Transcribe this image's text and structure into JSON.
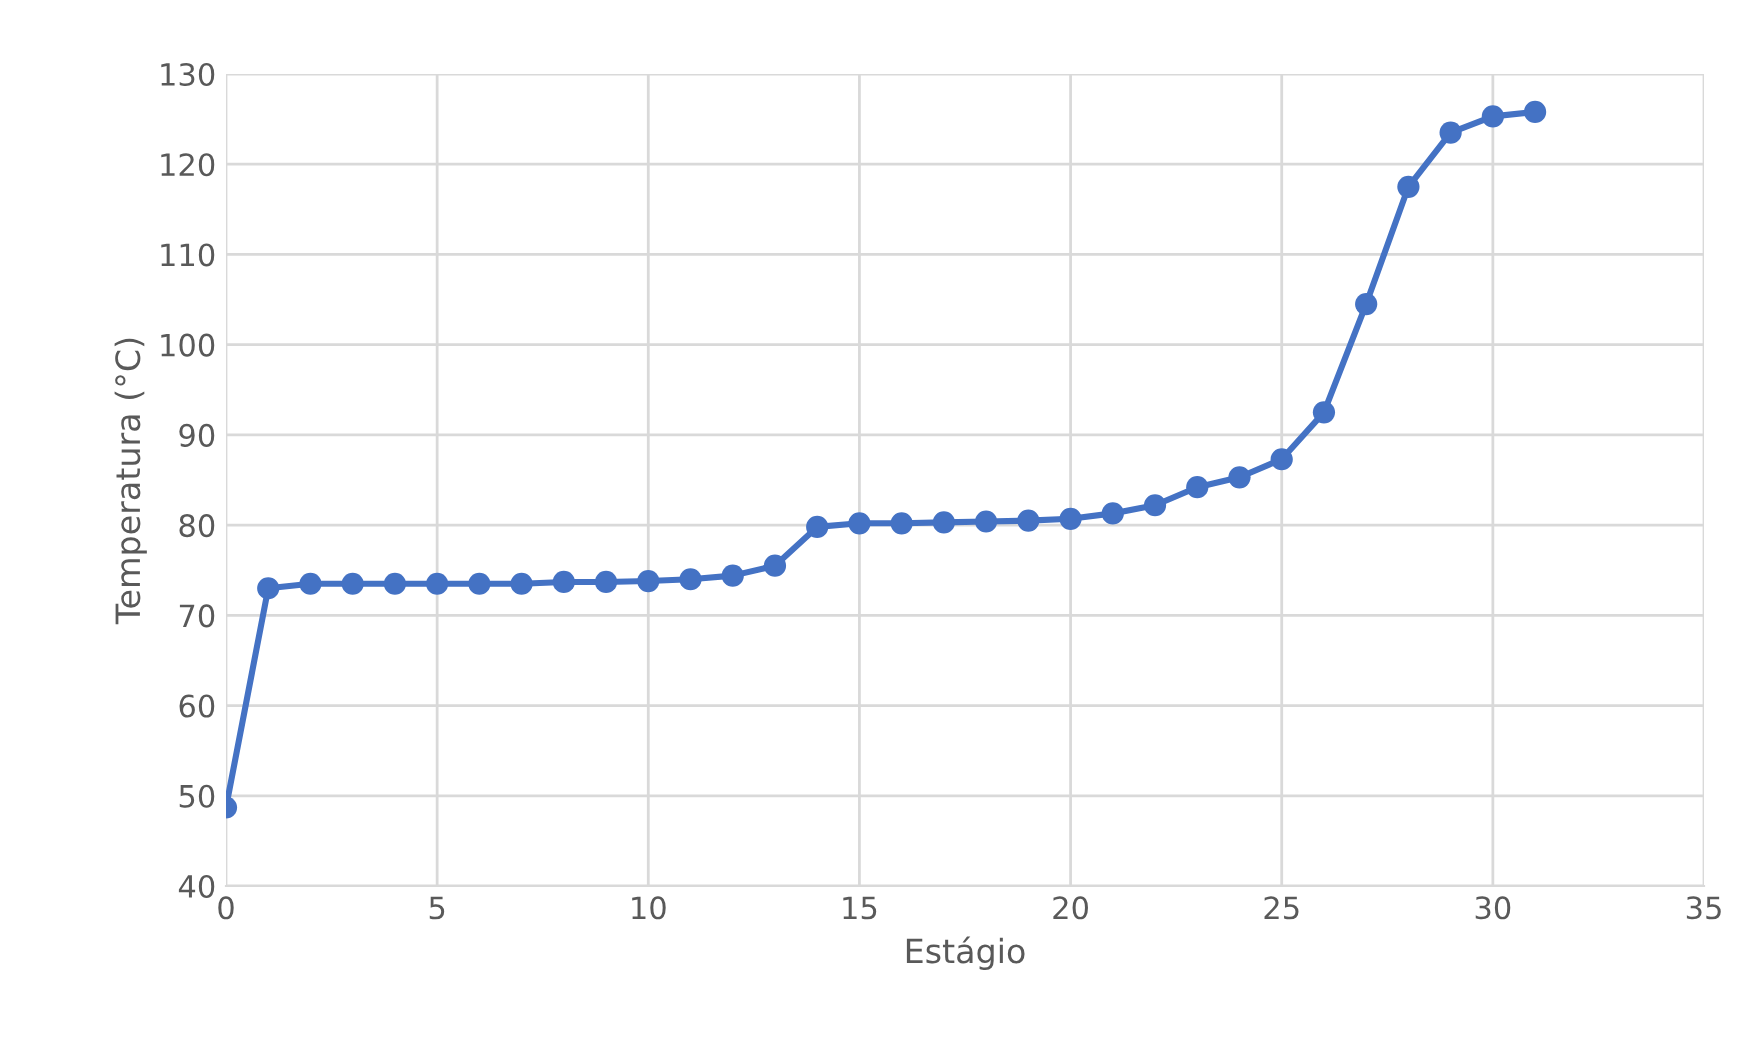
{
  "chart_data": {
    "type": "line",
    "xlabel": "Estágio",
    "ylabel": "Temperatura (°C)",
    "x": [
      0,
      1,
      2,
      3,
      4,
      5,
      6,
      7,
      8,
      9,
      10,
      11,
      12,
      13,
      14,
      15,
      16,
      17,
      18,
      19,
      20,
      21,
      22,
      23,
      24,
      25,
      26,
      27,
      28,
      29,
      30,
      31
    ],
    "series": [
      {
        "color": "#4472c4",
        "values": [
          48.7,
          73,
          73.5,
          73.5,
          73.5,
          73.5,
          73.5,
          73.5,
          73.7,
          73.7,
          73.8,
          74,
          74.4,
          75.5,
          79.8,
          80.2,
          80.2,
          80.3,
          80.4,
          80.5,
          80.7,
          81.3,
          82.2,
          84.2,
          85.3,
          87.3,
          92.5,
          104.5,
          117.5,
          123.5,
          125.3,
          125.8
        ]
      }
    ],
    "xlim": [
      0,
      35
    ],
    "xticks": [
      0,
      5,
      10,
      15,
      20,
      25,
      30,
      35
    ],
    "ylim": [
      40,
      130
    ],
    "yticks": [
      40,
      50,
      60,
      70,
      80,
      90,
      100,
      110,
      120,
      130
    ],
    "grid": true,
    "marker": "circle",
    "line_style": "solid"
  }
}
